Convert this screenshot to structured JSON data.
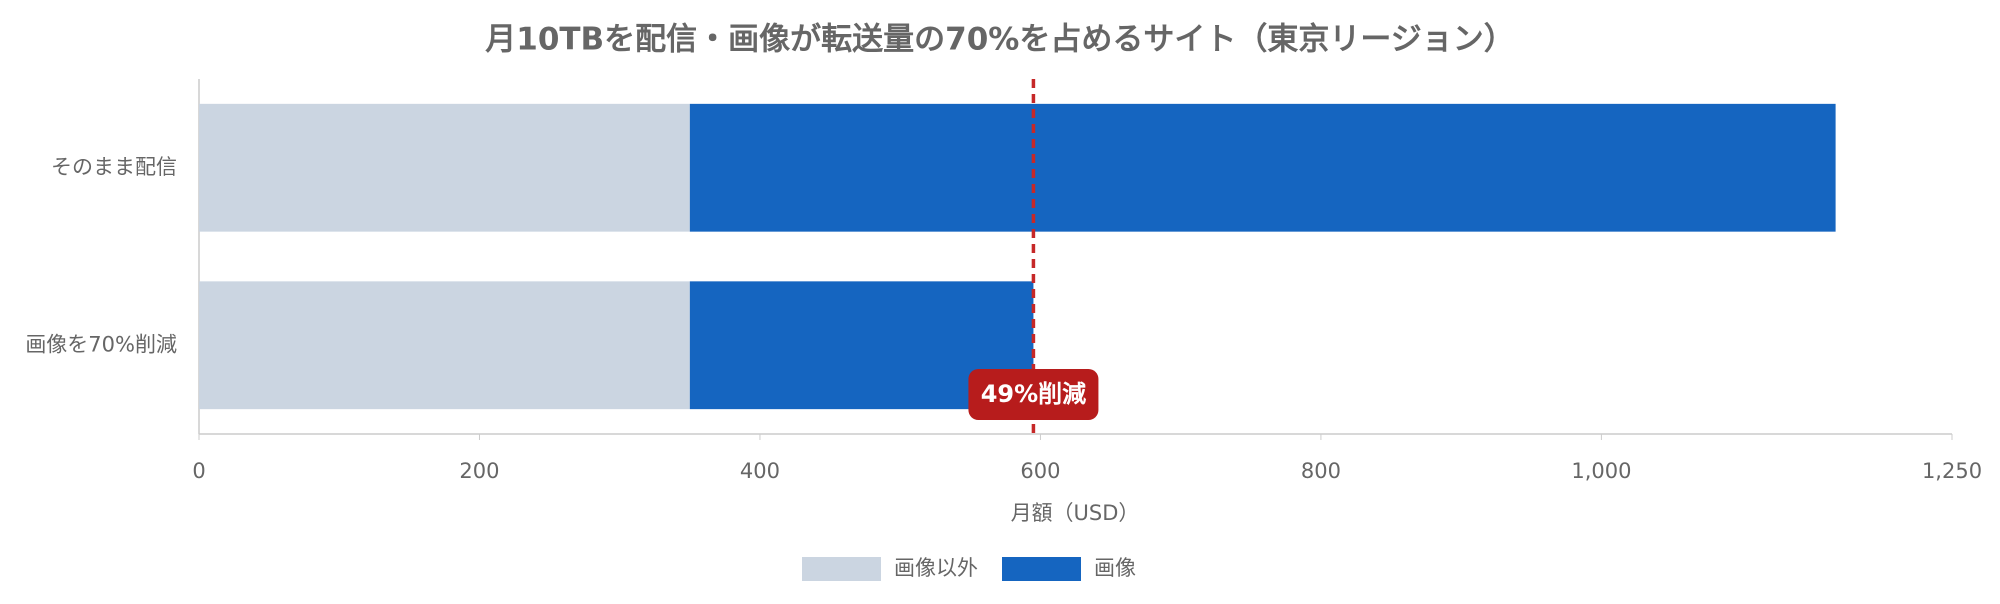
{
  "chart_data": {
    "type": "stacked-barh",
    "title": "月10TBを配信・画像が転送量の70%を占めるサイト（東京リージョン）",
    "categories": [
      "そのまま配信",
      "画像を70%削減"
    ],
    "series": [
      {
        "name": "画像以外",
        "color": "#cbd5e1",
        "values": [
          350,
          350
        ]
      },
      {
        "name": "画像",
        "color": "#1565c0",
        "values": [
          817,
          245
        ]
      }
    ],
    "xlabel": "月額（USD）",
    "xlim": [
      0,
      1250
    ],
    "xticks": [
      0,
      200,
      400,
      600,
      800,
      {
        "value": 1000,
        "label": "1,000"
      },
      {
        "value": 1250,
        "label": "1,250"
      }
    ],
    "reference_line": {
      "value": 595,
      "label": "49%削減",
      "color": "#c62828"
    },
    "legend": "bottom"
  }
}
